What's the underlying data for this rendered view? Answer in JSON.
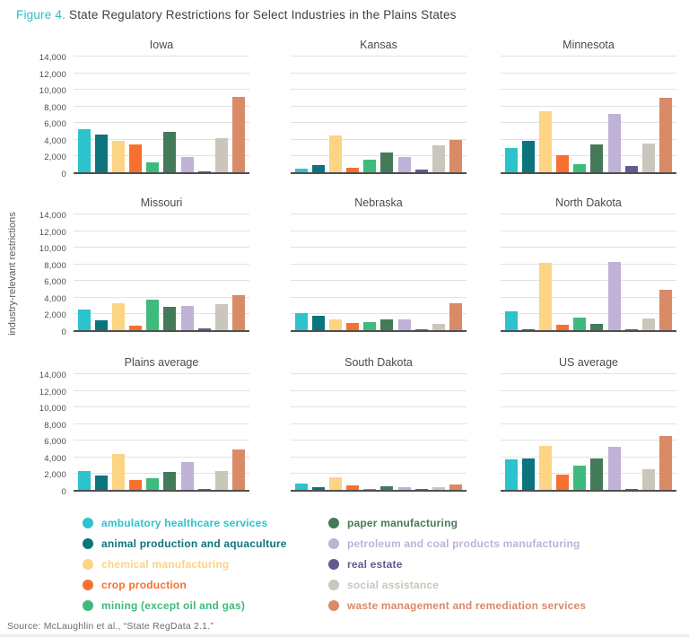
{
  "figure": {
    "label": "Figure 4.",
    "title": "State Regulatory Restrictions for Select Industries in the Plains States"
  },
  "ylabel": "industry-relevant restrictions",
  "source": "Source: McLaughlin et al., “State RegData 2.1.”",
  "accent_color": "#2fbfc9",
  "chart_data": {
    "type": "bar",
    "title": "State Regulatory Restrictions for Select Industries in the Plains States",
    "xlabel": "",
    "ylabel": "industry-relevant restrictions",
    "ylim": [
      0,
      14000
    ],
    "ytick_step": 2000,
    "ytick_values": [
      14000,
      12000,
      10000,
      8000,
      6000,
      4000,
      2000,
      0
    ],
    "grid": true,
    "legend_position": "bottom",
    "categories": [
      "ambulatory healthcare services",
      "animal production and aquaculture",
      "chemical manufacturing",
      "crop production",
      "mining (except oil and gas)",
      "paper manufacturing",
      "petroleum and coal products manufacturing",
      "real estate",
      "social assistance",
      "waste management and remediation services"
    ],
    "colors": [
      "#2cc3cc",
      "#0c747c",
      "#fcd483",
      "#f77030",
      "#3eba7c",
      "#457a59",
      "#c0b2d6",
      "#645a90",
      "#cbc6bc",
      "#d98a67"
    ],
    "charts": [
      {
        "title": "Iowa",
        "show_yaxis": true,
        "values": [
          5200,
          4500,
          3800,
          3300,
          1200,
          4800,
          1800,
          150,
          4100,
          9100
        ]
      },
      {
        "title": "Kansas",
        "show_yaxis": false,
        "values": [
          400,
          900,
          4400,
          500,
          1500,
          2400,
          1800,
          300,
          3200,
          3900
        ]
      },
      {
        "title": "Minnesota",
        "show_yaxis": false,
        "values": [
          2900,
          3800,
          7300,
          2100,
          1000,
          3300,
          7000,
          800,
          3400,
          8900
        ]
      },
      {
        "title": "Missouri",
        "show_yaxis": true,
        "values": [
          2500,
          1200,
          3200,
          500,
          3700,
          2800,
          2900,
          200,
          3100,
          4200
        ]
      },
      {
        "title": "Nebraska",
        "show_yaxis": false,
        "values": [
          2100,
          1700,
          1300,
          900,
          1000,
          1250,
          1300,
          150,
          800,
          3200
        ]
      },
      {
        "title": "North Dakota",
        "show_yaxis": false,
        "values": [
          2300,
          150,
          8100,
          650,
          1550,
          800,
          8200,
          100,
          1450,
          4800
        ]
      },
      {
        "title": "Plains average",
        "show_yaxis": true,
        "values": [
          2300,
          1700,
          4300,
          1200,
          1450,
          2200,
          3300,
          150,
          2300,
          4900
        ]
      },
      {
        "title": "South Dakota",
        "show_yaxis": false,
        "values": [
          800,
          350,
          1500,
          500,
          150,
          400,
          350,
          100,
          350,
          650
        ]
      },
      {
        "title": "US average",
        "show_yaxis": false,
        "values": [
          3700,
          3800,
          5300,
          1800,
          2900,
          3800,
          5200,
          150,
          2500,
          6500
        ]
      }
    ]
  }
}
